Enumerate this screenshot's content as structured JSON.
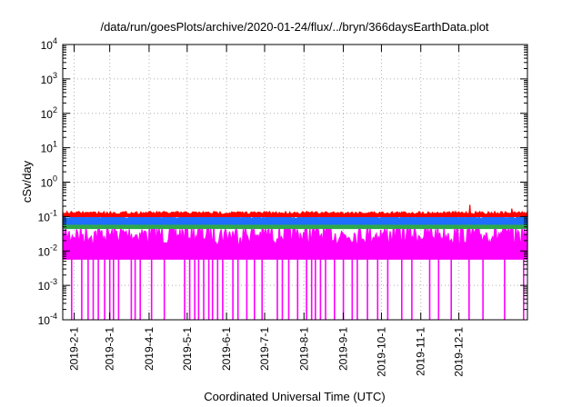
{
  "chart_data": {
    "type": "line",
    "title": "/data/run/goesPlots/archive/2020-01-24/flux/../bryn/366daysEarthData.plot",
    "xlabel": "Coordinated Universal Time (UTC)",
    "ylabel": "cSv/day",
    "yscale": "log",
    "ylim": [
      0.0001,
      10000
    ],
    "xlim": [
      "2019-01-23",
      "2020-01-24"
    ],
    "grid": true,
    "legend": "none",
    "y_ticks": [
      {
        "value": 0.0001,
        "base": "10",
        "exp": "-4"
      },
      {
        "value": 0.001,
        "base": "10",
        "exp": "-3"
      },
      {
        "value": 0.01,
        "base": "10",
        "exp": "-2"
      },
      {
        "value": 0.1,
        "base": "10",
        "exp": "-1"
      },
      {
        "value": 1,
        "base": "10",
        "exp": "0"
      },
      {
        "value": 10,
        "base": "10",
        "exp": "1"
      },
      {
        "value": 100,
        "base": "10",
        "exp": "2"
      },
      {
        "value": 1000,
        "base": "10",
        "exp": "3"
      },
      {
        "value": 10000,
        "base": "10",
        "exp": "4"
      }
    ],
    "x_ticks": [
      {
        "date": "2019-02-01",
        "label": "2019-2-1"
      },
      {
        "date": "2019-03-01",
        "label": "2019-3-1"
      },
      {
        "date": "2019-04-01",
        "label": "2019-4-1"
      },
      {
        "date": "2019-05-01",
        "label": "2019-5-1"
      },
      {
        "date": "2019-06-01",
        "label": "2019-6-1"
      },
      {
        "date": "2019-07-01",
        "label": "2019-7-1"
      },
      {
        "date": "2019-08-01",
        "label": "2019-8-1"
      },
      {
        "date": "2019-09-01",
        "label": "2019-9-1"
      },
      {
        "date": "2019-10-01",
        "label": "2019-10-1"
      },
      {
        "date": "2019-11-01",
        "label": "2019-11-1"
      },
      {
        "date": "2019-12-01",
        "label": "2019-12-1"
      }
    ],
    "series": [
      {
        "color": "#ff0000",
        "band_low": 0.1,
        "band_high": 0.14,
        "spikes": [
          {
            "date": "2019-12-10",
            "value": 0.22
          },
          {
            "date": "2020-01-12",
            "value": 0.17
          }
        ]
      },
      {
        "color": "#1e6fff",
        "band_low": 0.06,
        "band_high": 0.11
      },
      {
        "color": "#2ea84a",
        "band_low": 0.045,
        "band_high": 0.075
      },
      {
        "color": "#ff00ff",
        "band_low": 0.0001,
        "band_high": 0.06,
        "floor": 0.006,
        "dropout_dates": [
          "2019-01-30",
          "2019-02-07",
          "2019-02-12",
          "2019-02-16",
          "2019-02-20",
          "2019-02-25",
          "2019-03-01",
          "2019-03-04",
          "2019-03-08",
          "2019-03-18",
          "2019-03-21",
          "2019-03-25",
          "2019-04-03",
          "2019-04-13",
          "2019-04-29",
          "2019-05-03",
          "2019-05-07",
          "2019-05-10",
          "2019-05-14",
          "2019-05-18",
          "2019-05-21",
          "2019-05-25",
          "2019-05-29",
          "2019-06-06",
          "2019-06-10",
          "2019-06-17",
          "2019-06-23",
          "2019-06-29",
          "2019-07-11",
          "2019-07-15",
          "2019-07-20",
          "2019-07-27",
          "2019-08-03",
          "2019-08-07",
          "2019-08-10",
          "2019-08-14",
          "2019-08-18",
          "2019-08-25",
          "2019-09-01",
          "2019-09-08",
          "2019-09-12",
          "2019-09-20",
          "2019-09-28",
          "2019-10-06",
          "2019-10-17",
          "2019-10-25",
          "2019-11-08",
          "2019-11-15",
          "2019-11-25",
          "2019-12-09",
          "2019-12-20",
          "2020-01-06",
          "2020-01-21"
        ]
      }
    ]
  }
}
